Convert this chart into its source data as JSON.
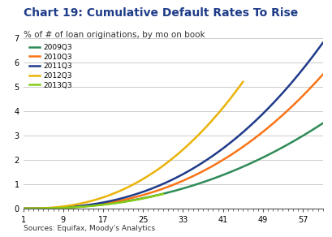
{
  "title": "Chart 19: Cumulative Default Rates To Rise",
  "subtitle": "% of # of loan originations, by mo on book",
  "source": "Sources: Equifax, Moody's Analytics",
  "title_color": "#1F3C88",
  "subtitle_color": "#333333",
  "xlim": [
    1,
    61
  ],
  "ylim": [
    0,
    7
  ],
  "xticks": [
    1,
    9,
    17,
    25,
    33,
    41,
    49,
    57
  ],
  "yticks": [
    0,
    1,
    2,
    3,
    4,
    5,
    6,
    7
  ],
  "series": [
    {
      "label": "2009Q3",
      "color": "#2e8b57",
      "end_x": 61,
      "end_y": 3.5,
      "style": "quadratic",
      "inflect": 20,
      "start_slow": true
    },
    {
      "label": "2010Q3",
      "color": "#f97316",
      "end_x": 61,
      "end_y": 5.5,
      "style": "quadratic",
      "inflect": 18,
      "start_slow": true
    },
    {
      "label": "2011Q3",
      "color": "#1e3a8a",
      "end_x": 61,
      "end_y": 6.8,
      "style": "quadratic",
      "inflect": 17,
      "start_slow": true
    },
    {
      "label": "2012Q3",
      "color": "#eab308",
      "end_x": 45,
      "end_y": 5.2,
      "style": "quadratic",
      "inflect": 17,
      "start_slow": true
    },
    {
      "label": "2013Q3",
      "color": "#84cc16",
      "end_x": 29,
      "end_y": 0.6,
      "style": "quadratic",
      "inflect": 17,
      "start_slow": true
    }
  ],
  "background_color": "#ffffff",
  "grid_color": "#cccccc",
  "tick_color": "#555555",
  "linewidth": 1.8
}
